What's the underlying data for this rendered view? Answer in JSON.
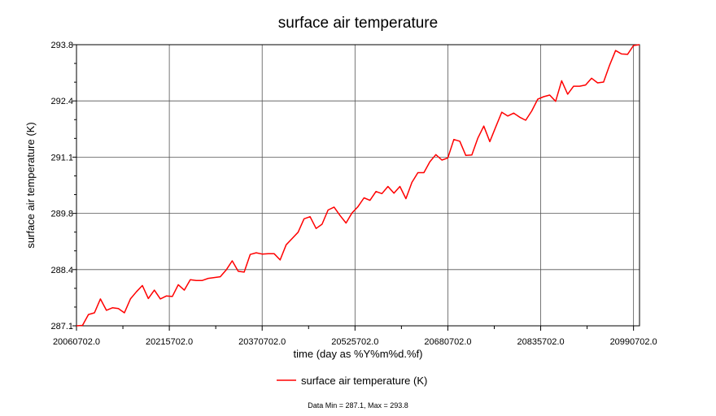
{
  "chart_data": {
    "type": "line",
    "title": "surface air temperature",
    "xlabel": "time (day as %Y%m%d.%f)",
    "ylabel": "surface air temperature (K)",
    "x_range": [
      2006,
      2100
    ],
    "y_range": [
      287.1,
      293.8
    ],
    "x_tick_values": [
      2006,
      2021.5,
      2037,
      2052.5,
      2068,
      2083.5,
      2099
    ],
    "x_tick_labels": [
      "20060702.0",
      "20215702.0",
      "20370702.0",
      "20525702.0",
      "20680702.0",
      "20835702.0",
      "20990702.0"
    ],
    "y_ticks": [
      "287.1",
      "288.4",
      "289.8",
      "291.1",
      "292.4",
      "293.8"
    ],
    "y_tick_values": [
      287.1,
      288.44,
      289.78,
      291.12,
      292.46,
      293.8
    ],
    "grid": true,
    "legend_position": "bottom-center",
    "series": [
      {
        "name": "surface air temperature (K)",
        "color": "#ff0000",
        "x": [
          2006,
          2007,
          2008,
          2009,
          2010,
          2011,
          2012,
          2013,
          2014,
          2015,
          2016,
          2017,
          2018,
          2019,
          2020,
          2021,
          2022,
          2023,
          2024,
          2025,
          2026,
          2027,
          2028,
          2029,
          2030,
          2031,
          2032,
          2033,
          2034,
          2035,
          2036,
          2037,
          2038,
          2039,
          2040,
          2041,
          2042,
          2043,
          2044,
          2045,
          2046,
          2047,
          2048,
          2049,
          2050,
          2051,
          2052,
          2053,
          2054,
          2055,
          2056,
          2057,
          2058,
          2059,
          2060,
          2061,
          2062,
          2063,
          2064,
          2065,
          2066,
          2067,
          2068,
          2069,
          2070,
          2071,
          2072,
          2073,
          2074,
          2075,
          2076,
          2077,
          2078,
          2079,
          2080,
          2081,
          2082,
          2083,
          2084,
          2085,
          2086,
          2087,
          2088,
          2089,
          2090,
          2091,
          2092,
          2093,
          2094,
          2095,
          2096,
          2097,
          2098,
          2099,
          2100
        ],
        "y": [
          287.1,
          287.11,
          287.37,
          287.41,
          287.74,
          287.47,
          287.53,
          287.51,
          287.41,
          287.74,
          287.91,
          288.06,
          287.75,
          287.95,
          287.74,
          287.81,
          287.8,
          288.08,
          287.95,
          288.2,
          288.18,
          288.18,
          288.23,
          288.25,
          288.27,
          288.43,
          288.65,
          288.4,
          288.38,
          288.8,
          288.84,
          288.81,
          288.82,
          288.82,
          288.67,
          289.03,
          289.18,
          289.33,
          289.65,
          289.7,
          289.42,
          289.52,
          289.86,
          289.93,
          289.73,
          289.55,
          289.79,
          289.94,
          290.15,
          290.09,
          290.3,
          290.25,
          290.42,
          290.26,
          290.42,
          290.13,
          290.52,
          290.75,
          290.75,
          291.01,
          291.18,
          291.05,
          291.1,
          291.54,
          291.5,
          291.16,
          291.17,
          291.57,
          291.86,
          291.49,
          291.84,
          292.19,
          292.1,
          292.17,
          292.07,
          292.0,
          292.22,
          292.5,
          292.56,
          292.6,
          292.45,
          292.94,
          292.62,
          292.81,
          292.81,
          292.84,
          293.0,
          292.89,
          292.91,
          293.31,
          293.66,
          293.58,
          293.57,
          293.78,
          293.8
        ]
      }
    ],
    "stats_text": "Data Min = 287.1, Max = 293.8"
  }
}
